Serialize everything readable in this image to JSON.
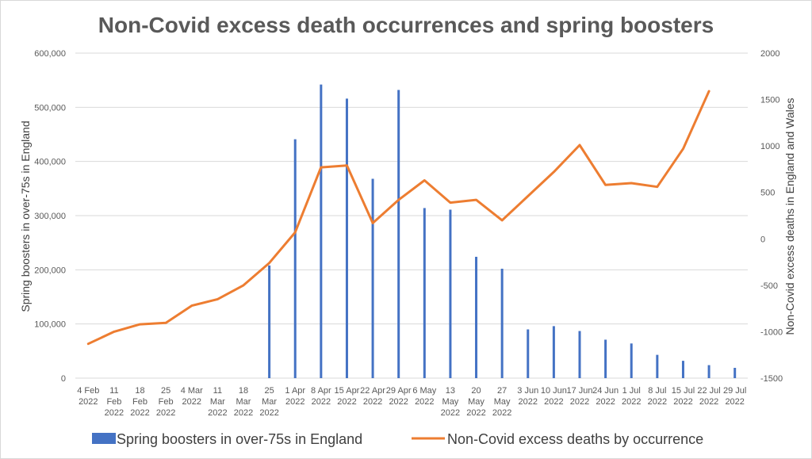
{
  "chart_data": {
    "type": "bar+line",
    "title": "Non-Covid excess death occurrences and spring boosters",
    "categories": [
      [
        "4 Feb",
        "2022"
      ],
      [
        "11",
        "Feb",
        "2022"
      ],
      [
        "18",
        "Feb",
        "2022"
      ],
      [
        "25",
        "Feb",
        "2022"
      ],
      [
        "4 Mar",
        "2022"
      ],
      [
        "11",
        "Mar",
        "2022"
      ],
      [
        "18",
        "Mar",
        "2022"
      ],
      [
        "25",
        "Mar",
        "2022"
      ],
      [
        "1 Apr",
        "2022"
      ],
      [
        "8 Apr",
        "2022"
      ],
      [
        "15 Apr",
        "2022"
      ],
      [
        "22 Apr",
        "2022"
      ],
      [
        "29 Apr",
        "2022"
      ],
      [
        "6 May",
        "2022"
      ],
      [
        "13",
        "May",
        "2022"
      ],
      [
        "20",
        "May",
        "2022"
      ],
      [
        "27",
        "May",
        "2022"
      ],
      [
        "3 Jun",
        "2022"
      ],
      [
        "10 Jun",
        "2022"
      ],
      [
        "17 Jun",
        "2022"
      ],
      [
        "24 Jun",
        "2022"
      ],
      [
        "1 Jul",
        "2022"
      ],
      [
        "8 Jul",
        "2022"
      ],
      [
        "15 Jul",
        "2022"
      ],
      [
        "22 Jul",
        "2022"
      ],
      [
        "29 Jul",
        "2022"
      ]
    ],
    "y_left": {
      "label": "Spring boosters in over-75s in England",
      "min": 0,
      "max": 600000,
      "step": 100000,
      "tick_labels": [
        "0",
        "100,000",
        "200,000",
        "300,000",
        "400,000",
        "500,000",
        "600,000"
      ]
    },
    "y_right": {
      "label": "Non-Covid excess deaths in England and Wales",
      "min": -1500,
      "max": 2000,
      "step": 500,
      "tick_labels": [
        "-1500",
        "-1000",
        "-500",
        "0",
        "500",
        "1000",
        "1500",
        "2000"
      ]
    },
    "grid": "horizontal",
    "legend_position": "bottom",
    "series": [
      {
        "name": "Spring boosters in over-75s in England",
        "type": "bar",
        "axis": "left",
        "color": "#4472C4",
        "values": [
          0,
          0,
          0,
          0,
          0,
          0,
          0,
          208000,
          441000,
          542000,
          516000,
          368000,
          532000,
          314000,
          311000,
          224000,
          202000,
          90000,
          96000,
          87000,
          71000,
          64000,
          43000,
          32000,
          24000,
          19000
        ]
      },
      {
        "name": "Non-Covid excess deaths by occurrence",
        "type": "line",
        "axis": "right",
        "color": "#ED7D31",
        "values": [
          -1130,
          -1000,
          -920,
          -905,
          -720,
          -650,
          -500,
          -260,
          70,
          770,
          790,
          170,
          420,
          630,
          390,
          420,
          200,
          460,
          720,
          1010,
          580,
          600,
          560,
          970,
          1590,
          null
        ]
      }
    ]
  }
}
